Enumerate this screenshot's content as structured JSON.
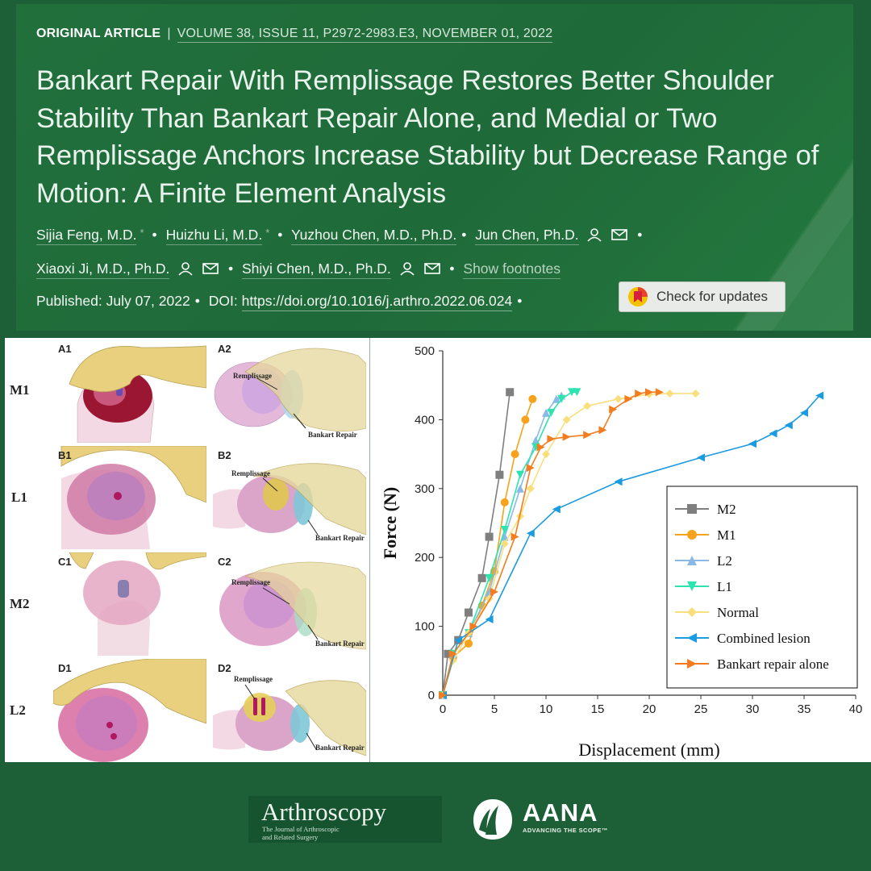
{
  "article": {
    "type": "ORIGINAL ARTICLE",
    "separator": "|",
    "citation": "VOLUME 38, ISSUE 11, P2972-2983.E3, NOVEMBER 01, 2022",
    "title": "Bankart Repair With Remplissage Restores Better Shoulder Stability Than Bankart Repair Alone, and Medial or Two Remplissage Anchors Increase Stability but Decrease Range of Motion: A Finite Element Analysis",
    "authors": [
      {
        "name": "Sijia Feng, M.D.",
        "star": "*"
      },
      {
        "name": "Huizhu Li, M.D.",
        "star": "*"
      },
      {
        "name": "Yuzhou Chen, M.D., Ph.D."
      },
      {
        "name": "Jun Chen, Ph.D."
      },
      {
        "name": "Xiaoxi Ji, M.D., Ph.D."
      },
      {
        "name": "Shiyi Chen, M.D., Ph.D."
      }
    ],
    "show_footnotes": "Show footnotes",
    "published_label": "Published:",
    "published_date": "July 07, 2022",
    "doi_label": "DOI:",
    "doi": "https://doi.org/10.1016/j.arthro.2022.06.024",
    "check_updates": "Check for updates"
  },
  "figure_left": {
    "rows": [
      "M1",
      "L1",
      "M2",
      "L2"
    ],
    "cells": [
      "A1",
      "A2",
      "B1",
      "B2",
      "C1",
      "C2",
      "D1",
      "D2"
    ],
    "annotations": {
      "remplissage": "Remplissage",
      "bankart": "Bankart Repair"
    }
  },
  "chart_data": {
    "type": "line",
    "xlabel": "Displacement (mm)",
    "ylabel": "Force (N)",
    "xlim": [
      0,
      40
    ],
    "ylim": [
      0,
      500
    ],
    "xticks": [
      0,
      5,
      10,
      15,
      20,
      25,
      30,
      35,
      40
    ],
    "yticks": [
      0,
      100,
      200,
      300,
      400,
      500
    ],
    "grid": false,
    "legend_position": "right",
    "series": [
      {
        "name": "M2",
        "color": "#7f7f7f",
        "marker": "square",
        "x": [
          0,
          0.5,
          1.5,
          2.5,
          3.8,
          4.5,
          5.5,
          6.5
        ],
        "y": [
          0,
          60,
          80,
          120,
          170,
          230,
          320,
          440
        ]
      },
      {
        "name": "M1",
        "color": "#f7a21b",
        "marker": "circle",
        "x": [
          0,
          1,
          2.5,
          3.8,
          5,
          6,
          7,
          8,
          8.7
        ],
        "y": [
          0,
          55,
          75,
          130,
          180,
          280,
          350,
          400,
          430
        ]
      },
      {
        "name": "L2",
        "color": "#8ab9e8",
        "marker": "triangle-up",
        "x": [
          0,
          1,
          2.5,
          4.5,
          6,
          7.5,
          9,
          10,
          11,
          11.5
        ],
        "y": [
          0,
          60,
          90,
          150,
          230,
          300,
          370,
          410,
          430,
          435
        ]
      },
      {
        "name": "L1",
        "color": "#2de3b0",
        "marker": "triangle-down",
        "x": [
          0,
          1,
          2.5,
          4.5,
          6,
          7.5,
          9,
          10.5,
          11.5,
          12.5,
          13
        ],
        "y": [
          0,
          60,
          90,
          170,
          240,
          320,
          360,
          410,
          430,
          440,
          440
        ]
      },
      {
        "name": "Normal",
        "color": "#f9df7c",
        "marker": "diamond",
        "x": [
          0,
          1,
          2.5,
          4.5,
          6,
          7.5,
          8.5,
          10,
          12,
          14,
          17,
          20,
          22,
          24.5
        ],
        "y": [
          0,
          50,
          90,
          140,
          220,
          260,
          300,
          350,
          400,
          420,
          430,
          437,
          438,
          438
        ]
      },
      {
        "name": "Combined lesion",
        "color": "#1b9be0",
        "marker": "triangle-left",
        "x": [
          0,
          1.5,
          4.5,
          8.5,
          11,
          17,
          25,
          30,
          32,
          33.5,
          35,
          36.5
        ],
        "y": [
          0,
          80,
          110,
          235,
          270,
          310,
          345,
          365,
          380,
          392,
          410,
          435
        ]
      },
      {
        "name": "Bankart repair alone",
        "color": "#f47c20",
        "marker": "triangle-right",
        "x": [
          0,
          1,
          3,
          5,
          7,
          8.5,
          9.5,
          10.5,
          12,
          14,
          15.5,
          16.5,
          18,
          19,
          20,
          21
        ],
        "y": [
          0,
          60,
          100,
          150,
          230,
          330,
          360,
          372,
          375,
          378,
          385,
          415,
          430,
          438,
          440,
          440
        ]
      }
    ]
  },
  "footer": {
    "journal_name": "Arthroscopy",
    "journal_sub_1": "The Journal of Arthroscopic",
    "journal_sub_2": "and Related Surgery",
    "aana_name": "AANA",
    "aana_tagline": "ADVANCING THE SCOPE™"
  },
  "colors": {
    "background": "#1d5f36",
    "header": "#21703c",
    "check_button": "#e8ebe8"
  }
}
